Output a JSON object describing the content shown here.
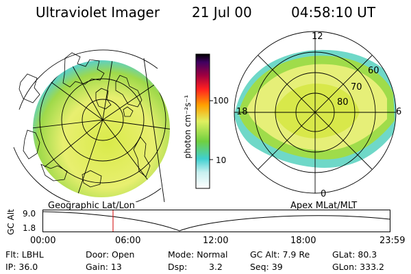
{
  "header": {
    "instrument": "Ultraviolet Imager",
    "date": "21 Jul 00",
    "time": "04:58:10 UT"
  },
  "colorbar": {
    "unit_label": "photon cm⁻²s⁻¹",
    "ticks": [
      "100",
      "10"
    ]
  },
  "polar_plot": {
    "mlt_labels": [
      "12",
      "18",
      "6",
      "0"
    ],
    "mlat_labels": [
      "60",
      "70",
      "80"
    ]
  },
  "panel_titles": {
    "left": "Geographic Lat/Lon",
    "right": "Apex MLat/MLT"
  },
  "altitude_strip": {
    "axis_label": "GC Alt",
    "y_ticks": [
      "9.0",
      "1.8"
    ],
    "x_ticks": [
      "00:00",
      "06:00",
      "12:00",
      "18:00",
      "23:59"
    ]
  },
  "info": {
    "flt": "Flt: LBHL",
    "ip": "IP: 36.0",
    "door": "Door: Open",
    "gain": "Gain: 13",
    "mode": "Mode: Normal",
    "dsp_label": "Dsp:",
    "dsp_value": "3.2",
    "gc_alt": "GC Alt: 7.9 Re",
    "seq": "Seq: 39",
    "glat": "GLat: 80.3",
    "glon": "GLon: 333.2"
  },
  "colors": {
    "aurora_green": "#7ad23a",
    "aurora_yellow": "#eef07a",
    "aurora_cyan": "#40d0d0",
    "current_time_marker": "#d00000"
  }
}
